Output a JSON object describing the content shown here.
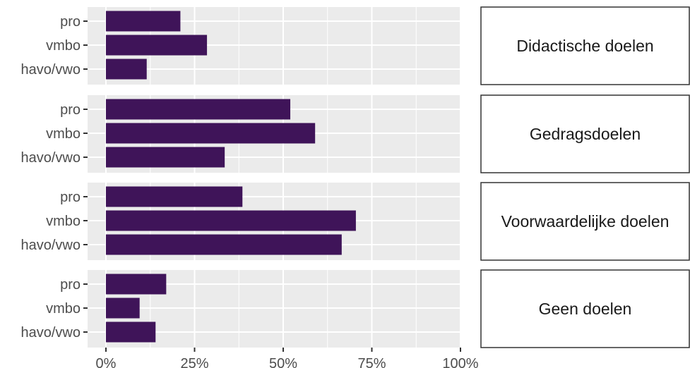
{
  "chart_data": {
    "type": "bar",
    "orientation": "horizontal",
    "faceted": true,
    "categories": [
      "pro",
      "vmbo",
      "havo/vwo"
    ],
    "x_ticks": [
      "0%",
      "25%",
      "50%",
      "75%",
      "100%"
    ],
    "xlim": [
      0,
      100
    ],
    "grid": true,
    "bar_color": "#3f1459",
    "panel_background": "#ebebeb",
    "facets": [
      {
        "label": "Didactische doelen",
        "values": [
          21,
          28.5,
          11.5
        ]
      },
      {
        "label": "Gedragsdoelen",
        "values": [
          52,
          59,
          33.5
        ]
      },
      {
        "label": "Voorwaardelijke doelen",
        "values": [
          38.5,
          70.5,
          66.5
        ]
      },
      {
        "label": "Geen doelen",
        "values": [
          17,
          9.5,
          14
        ]
      }
    ]
  }
}
